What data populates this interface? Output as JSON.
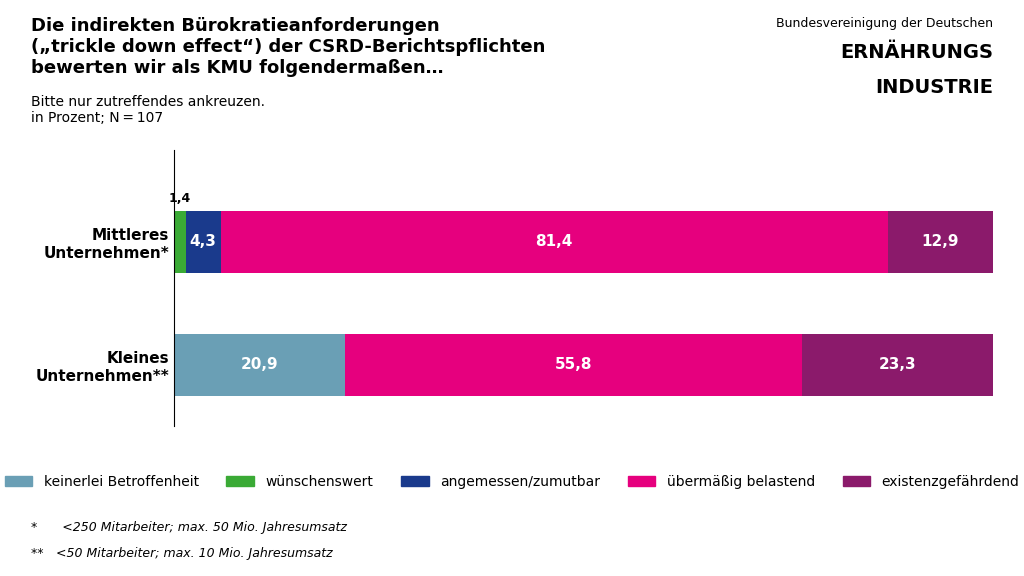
{
  "chart_data": {
    "type": "bar",
    "orientation": "horizontal",
    "stacked": true,
    "data_labels": true,
    "title": "Die indirekten Bürokratieanforderungen\n(„trickle down effect“) der CSRD-Berichtspflichten\nbewerten wir als KMU folgendermaßen…",
    "subtitle": "Bitte nur zutreffendes ankreuzen.\nin Prozent; N = 107",
    "categories": [
      "Mittleres\nUnternehmen*",
      "Kleines\nUnternehmen**"
    ],
    "series": [
      {
        "name": "keinerlei Betroffenheit",
        "color": "#6a9fb5",
        "values": [
          0.0,
          20.9
        ],
        "value_labels": [
          null,
          "20,9"
        ]
      },
      {
        "name": "wünschenswert",
        "color": "#3aaa35",
        "values": [
          1.4,
          0.0
        ],
        "value_labels": [
          "1,4",
          null
        ]
      },
      {
        "name": "angemessen/zumutbar",
        "color": "#1a3a8c",
        "values": [
          4.3,
          0.0
        ],
        "value_labels": [
          "4,3",
          null
        ]
      },
      {
        "name": "übermäßig belastend",
        "color": "#e6007e",
        "values": [
          81.4,
          55.8
        ],
        "value_labels": [
          "81,4",
          "55,8"
        ]
      },
      {
        "name": "existenzgefährdend",
        "color": "#8b1a6b",
        "values": [
          12.9,
          23.3
        ],
        "value_labels": [
          "12,9",
          "23,3"
        ]
      }
    ],
    "xlim": [
      0,
      100
    ],
    "tick_labels": "y",
    "legend": "lower center",
    "annotations": [
      "*  <250 Mitarbeiter; max. 50 Mio. Jahresumsatz",
      "** <50 Mitarbeiter; max. 10 Mio. Jahresumsatz",
      "Bundesvereinigung der Deutschen",
      "ERNÄHRUNGS",
      "INDUSTRIE"
    ]
  }
}
